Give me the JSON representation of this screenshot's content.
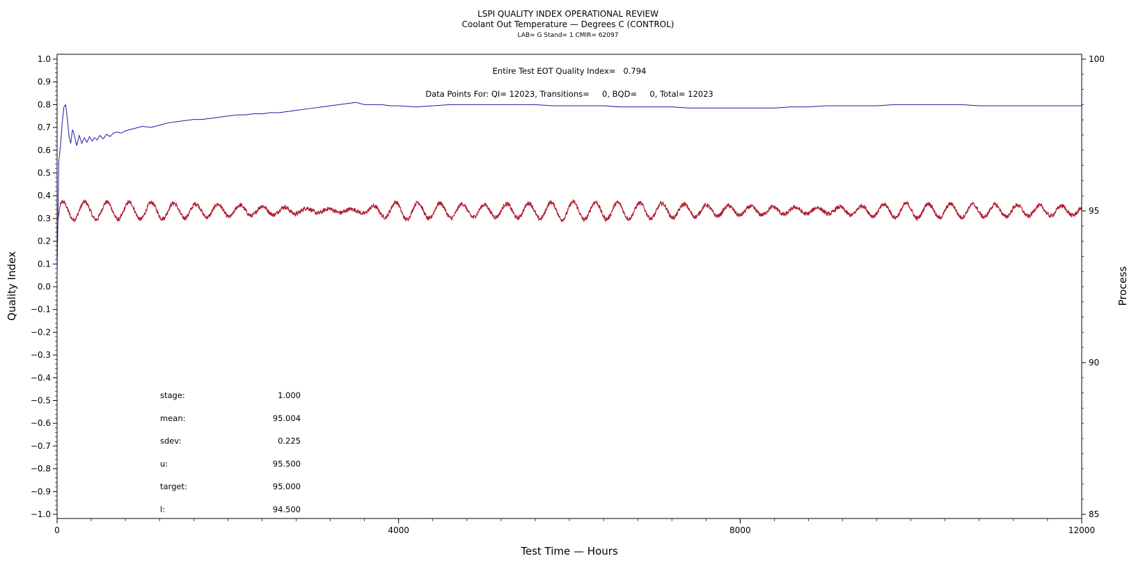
{
  "chart_data": {
    "type": "line",
    "title": "LSPI QUALITY INDEX OPERATIONAL REVIEW",
    "subtitle": "Coolant Out Temperature — Degrees C (CONTROL)",
    "subtitle2": "LAB= G Stand= 1 CMIR= 62097",
    "annotation1": "Entire Test EOT Quality Index=   0.794",
    "annotation2": "Data Points For: QI= 12023, Transitions=     0, BQD=     0, Total= 12023",
    "xlabel": "Test Time — Hours",
    "ylabel_left": "Quality Index",
    "ylabel_right": "Process",
    "xlim": [
      0,
      12000
    ],
    "ylim_left": [
      -1.0,
      1.0
    ],
    "ylim_right": [
      85,
      100
    ],
    "x_ticks": [
      "0",
      "4000",
      "8000",
      "12000"
    ],
    "x_tick_values": [
      0,
      4000,
      8000,
      12000
    ],
    "y_left_ticks": [
      "1.0",
      "0.9",
      "0.8",
      "0.7",
      "0.6",
      "0.5",
      "0.4",
      "0.3",
      "0.2",
      "0.1",
      "0.0",
      "−0.1",
      "−0.2",
      "−0.3",
      "−0.4",
      "−0.5",
      "−0.6",
      "−0.7",
      "−0.8",
      "−0.9",
      "−1.0"
    ],
    "y_left_tick_values": [
      1.0,
      0.9,
      0.8,
      0.7,
      0.6,
      0.5,
      0.4,
      0.3,
      0.2,
      0.1,
      0.0,
      -0.1,
      -0.2,
      -0.3,
      -0.4,
      -0.5,
      -0.6,
      -0.7,
      -0.8,
      -0.9,
      -1.0
    ],
    "y_right_ticks": [
      "100",
      "95",
      "90",
      "85"
    ],
    "y_right_tick_values": [
      100,
      95,
      90,
      85
    ],
    "series": [
      {
        "axis": "left",
        "color": "#1a1aa6",
        "x": [
          0,
          20,
          40,
          60,
          80,
          100,
          120,
          140,
          160,
          180,
          200,
          230,
          260,
          290,
          320,
          350,
          380,
          410,
          440,
          470,
          500,
          540,
          580,
          620,
          660,
          700,
          750,
          800,
          900,
          1000,
          1100,
          1200,
          1300,
          1400,
          1500,
          1600,
          1700,
          1800,
          1900,
          2000,
          2100,
          2200,
          2300,
          2400,
          2500,
          2600,
          2700,
          2800,
          2900,
          3000,
          3100,
          3200,
          3300,
          3400,
          3500,
          3600,
          3700,
          3800,
          3900,
          4000,
          4200,
          4400,
          4600,
          4800,
          5000,
          5200,
          5400,
          5600,
          5800,
          6000,
          6200,
          6400,
          6600,
          6800,
          7000,
          7200,
          7400,
          7600,
          7800,
          8000,
          8200,
          8400,
          8600,
          8800,
          9000,
          9200,
          9400,
          9600,
          9800,
          10000,
          10200,
          10400,
          10600,
          10800,
          11000,
          11200,
          11400,
          11600,
          11800,
          12000
        ],
        "values": [
          0.05,
          0.55,
          0.62,
          0.72,
          0.79,
          0.8,
          0.74,
          0.66,
          0.63,
          0.69,
          0.67,
          0.62,
          0.665,
          0.63,
          0.655,
          0.635,
          0.66,
          0.64,
          0.655,
          0.645,
          0.665,
          0.65,
          0.67,
          0.66,
          0.675,
          0.68,
          0.675,
          0.685,
          0.695,
          0.705,
          0.7,
          0.71,
          0.72,
          0.725,
          0.73,
          0.735,
          0.735,
          0.74,
          0.745,
          0.75,
          0.755,
          0.755,
          0.76,
          0.76,
          0.765,
          0.765,
          0.77,
          0.775,
          0.78,
          0.785,
          0.79,
          0.795,
          0.8,
          0.805,
          0.81,
          0.8,
          0.8,
          0.8,
          0.795,
          0.795,
          0.79,
          0.795,
          0.8,
          0.8,
          0.8,
          0.8,
          0.8,
          0.8,
          0.795,
          0.795,
          0.795,
          0.795,
          0.79,
          0.79,
          0.79,
          0.79,
          0.785,
          0.785,
          0.785,
          0.785,
          0.785,
          0.785,
          0.79,
          0.79,
          0.795,
          0.795,
          0.795,
          0.795,
          0.8,
          0.8,
          0.8,
          0.8,
          0.8,
          0.795,
          0.795,
          0.795,
          0.795,
          0.795,
          0.795,
          0.795
        ]
      },
      {
        "axis": "right",
        "color": "#b01c2e",
        "mean": 95.004,
        "sdev": 0.225,
        "cycle_hours": 260,
        "start_value": 94.6,
        "envelope_x": [
          0,
          1000,
          2000,
          3000,
          3500,
          4000,
          5000,
          6000,
          7000,
          8000,
          9000,
          10000,
          11000,
          12000
        ],
        "envelope_amplitude": [
          0.3,
          0.28,
          0.2,
          0.08,
          0.05,
          0.3,
          0.2,
          0.3,
          0.25,
          0.15,
          0.1,
          0.25,
          0.2,
          0.15
        ],
        "noise": 0.07
      }
    ],
    "stats": [
      {
        "label": "stage:",
        "value": "1.000"
      },
      {
        "label": "mean:",
        "value": "95.004"
      },
      {
        "label": "sdev:",
        "value": "0.225"
      },
      {
        "label": "u:",
        "value": "95.500"
      },
      {
        "label": "target:",
        "value": "95.000"
      },
      {
        "label": "l:",
        "value": "94.500"
      }
    ],
    "grid": false
  }
}
